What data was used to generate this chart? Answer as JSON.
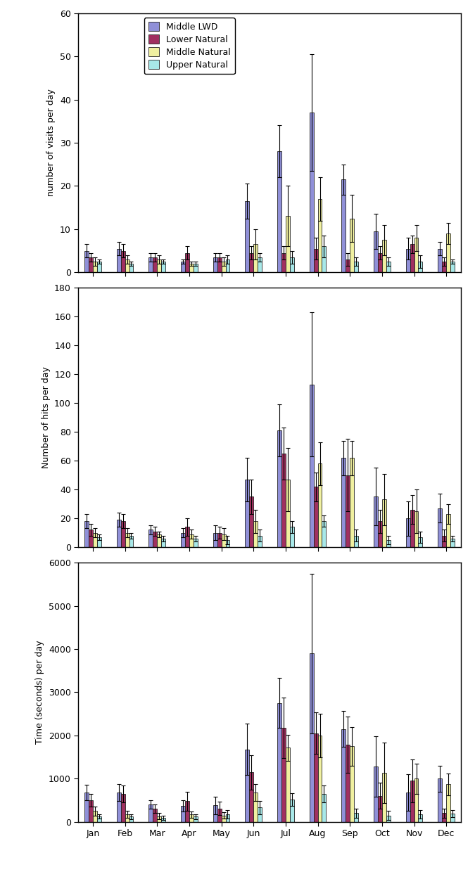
{
  "months": [
    "Jan",
    "Feb",
    "Mar",
    "Apr",
    "May",
    "Jun",
    "Jul",
    "Aug",
    "Sep",
    "Oct",
    "Nov",
    "Dec"
  ],
  "colors": {
    "Middle LWD": "#9090D8",
    "Lower Natural": "#A03060",
    "Middle Natural": "#F0F0A0",
    "Upper Natural": "#A8E8E8"
  },
  "edgecolor": "#222222",
  "legend_order": [
    "Middle LWD",
    "Lower Natural",
    "Middle Natural",
    "Upper Natural"
  ],
  "panel1": {
    "ylabel": "number of visits per day",
    "ylim": [
      0,
      60
    ],
    "yticks": [
      0,
      10,
      20,
      30,
      40,
      50,
      60
    ],
    "means": {
      "Middle LWD": [
        5.0,
        5.5,
        3.5,
        2.5,
        3.5,
        16.5,
        28.0,
        37.0,
        21.5,
        9.5,
        5.5,
        5.5
      ],
      "Lower Natural": [
        3.5,
        5.0,
        3.5,
        4.5,
        3.5,
        4.5,
        4.5,
        5.5,
        3.0,
        4.5,
        6.5,
        2.5
      ],
      "Middle Natural": [
        2.5,
        3.0,
        3.0,
        2.0,
        2.5,
        6.5,
        13.0,
        17.0,
        12.5,
        7.5,
        8.0,
        9.0
      ],
      "Upper Natural": [
        2.5,
        2.0,
        2.5,
        2.0,
        3.0,
        3.5,
        3.5,
        6.0,
        2.5,
        2.5,
        2.5,
        2.5
      ]
    },
    "errors": {
      "Middle LWD": [
        1.5,
        1.5,
        1.0,
        0.5,
        1.0,
        4.0,
        6.0,
        13.5,
        3.5,
        4.0,
        2.5,
        1.5
      ],
      "Lower Natural": [
        1.0,
        1.5,
        1.0,
        1.5,
        1.0,
        1.5,
        1.5,
        2.5,
        1.5,
        1.5,
        2.0,
        1.0
      ],
      "Middle Natural": [
        1.0,
        1.0,
        1.0,
        0.5,
        1.0,
        3.5,
        7.0,
        5.0,
        5.5,
        3.5,
        3.0,
        2.5
      ],
      "Upper Natural": [
        0.5,
        0.5,
        0.5,
        0.5,
        1.0,
        1.0,
        1.5,
        2.5,
        1.0,
        1.0,
        1.5,
        0.5
      ]
    }
  },
  "panel2": {
    "ylabel": "Number of hits per day",
    "ylim": [
      0,
      180
    ],
    "yticks": [
      0,
      20,
      40,
      60,
      80,
      100,
      120,
      140,
      160,
      180
    ],
    "means": {
      "Middle LWD": [
        18.0,
        19.0,
        12.0,
        10.0,
        10.0,
        47.0,
        81.0,
        113.0,
        62.0,
        35.0,
        20.0,
        27.0
      ],
      "Lower Natural": [
        12.0,
        18.0,
        11.0,
        14.0,
        10.0,
        35.0,
        65.0,
        42.0,
        50.0,
        18.0,
        26.0,
        8.0
      ],
      "Middle Natural": [
        10.0,
        10.0,
        9.0,
        9.0,
        9.0,
        18.0,
        47.0,
        58.0,
        62.0,
        33.0,
        25.0,
        23.0
      ],
      "Upper Natural": [
        7.0,
        8.0,
        6.0,
        6.0,
        5.0,
        8.0,
        14.0,
        18.0,
        8.0,
        5.0,
        7.0,
        6.0
      ]
    },
    "errors": {
      "Middle LWD": [
        5.0,
        5.0,
        3.0,
        3.0,
        5.0,
        15.0,
        18.0,
        50.0,
        12.0,
        20.0,
        12.0,
        10.0
      ],
      "Lower Natural": [
        4.0,
        5.0,
        3.0,
        6.0,
        4.0,
        12.0,
        18.0,
        10.0,
        25.0,
        8.0,
        10.0,
        4.0
      ],
      "Middle Natural": [
        3.0,
        3.0,
        2.0,
        3.0,
        4.0,
        8.0,
        22.0,
        15.0,
        12.0,
        18.0,
        15.0,
        7.0
      ],
      "Upper Natural": [
        2.0,
        2.0,
        2.0,
        2.0,
        3.0,
        4.0,
        4.0,
        4.0,
        4.0,
        3.0,
        4.0,
        2.0
      ]
    }
  },
  "panel3": {
    "ylabel": "Time (seconds) per day",
    "ylim": [
      0,
      6000
    ],
    "yticks": [
      0,
      1000,
      2000,
      3000,
      4000,
      5000,
      6000
    ],
    "means": {
      "Middle LWD": [
        680,
        680,
        400,
        370,
        380,
        1680,
        2750,
        3900,
        2150,
        1280,
        680,
        1000
      ],
      "Lower Natural": [
        500,
        650,
        310,
        480,
        310,
        1150,
        2180,
        2050,
        1780,
        600,
        950,
        200
      ],
      "Middle Natural": [
        250,
        180,
        130,
        170,
        150,
        680,
        1720,
        2000,
        1750,
        1130,
        1000,
        870
      ],
      "Upper Natural": [
        120,
        120,
        90,
        120,
        180,
        330,
        520,
        650,
        200,
        150,
        180,
        190
      ]
    },
    "errors": {
      "Middle LWD": [
        180,
        200,
        100,
        130,
        200,
        600,
        580,
        1850,
        420,
        700,
        430,
        300
      ],
      "Lower Natural": [
        150,
        200,
        100,
        220,
        150,
        400,
        700,
        480,
        650,
        300,
        500,
        100
      ],
      "Middle Natural": [
        100,
        80,
        70,
        70,
        80,
        200,
        300,
        500,
        450,
        700,
        350,
        250
      ],
      "Upper Natural": [
        50,
        60,
        50,
        60,
        100,
        150,
        150,
        200,
        100,
        100,
        100,
        80
      ]
    }
  }
}
